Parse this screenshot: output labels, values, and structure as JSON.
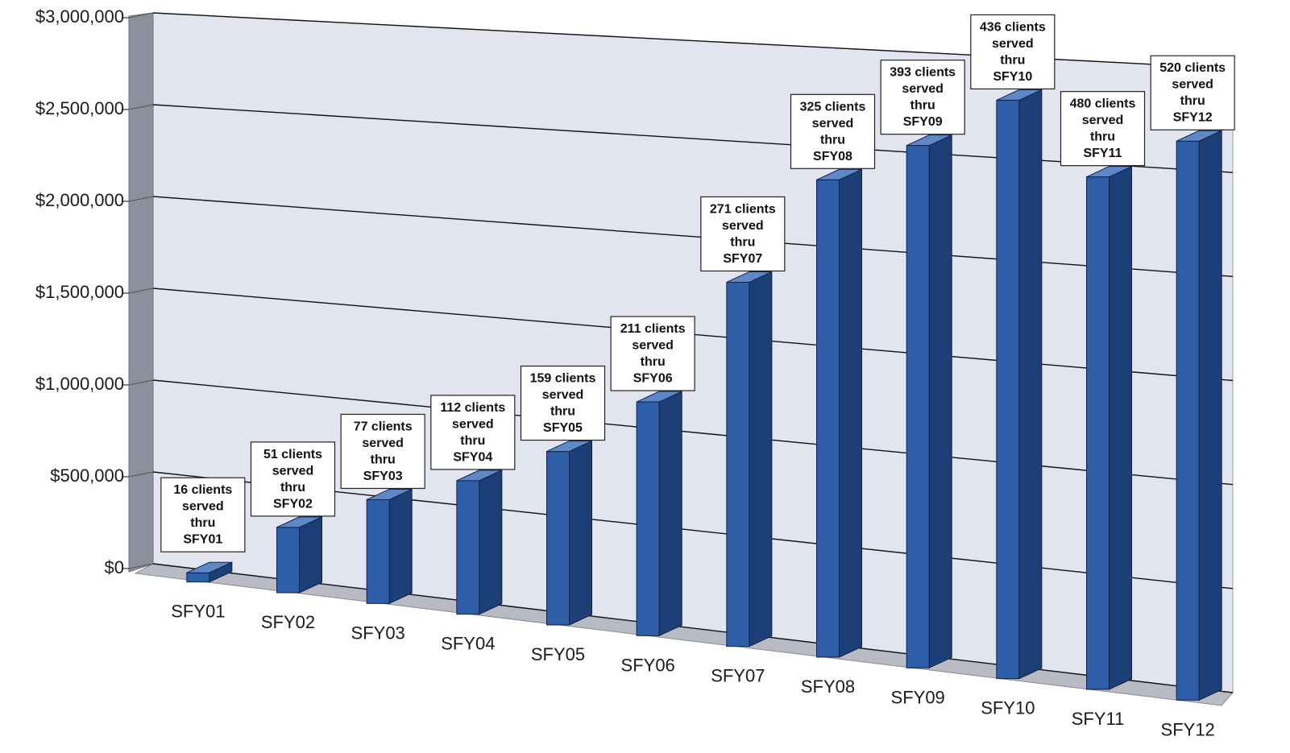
{
  "chart_data": {
    "type": "bar",
    "title": "",
    "xlabel": "",
    "ylabel": "",
    "ylim": [
      0,
      3000000
    ],
    "yticks": [
      "$0",
      "$500,000",
      "$1,000,000",
      "$1,500,000",
      "$2,000,000",
      "$2,500,000",
      "$3,000,000"
    ],
    "categories": [
      "SFY01",
      "SFY02",
      "SFY03",
      "SFY04",
      "SFY05",
      "SFY06",
      "SFY07",
      "SFY08",
      "SFY09",
      "SFY10",
      "SFY11",
      "SFY12"
    ],
    "values": [
      50000,
      350000,
      550000,
      700000,
      900000,
      1200000,
      1850000,
      2400000,
      2600000,
      2850000,
      2500000,
      2700000
    ],
    "annotations": [
      [
        "16 clients",
        "served",
        "thru",
        "SFY01"
      ],
      [
        "51 clients",
        "served",
        "thru",
        "SFY02"
      ],
      [
        "77 clients",
        "served",
        "thru",
        "SFY03"
      ],
      [
        "112 clients",
        "served",
        "thru",
        "SFY04"
      ],
      [
        "159 clients",
        "served",
        "thru",
        "SFY05"
      ],
      [
        "211 clients",
        "served",
        "thru",
        "SFY06"
      ],
      [
        "271 clients",
        "served",
        "thru",
        "SFY07"
      ],
      [
        "325 clients",
        "served",
        "thru",
        "SFY08"
      ],
      [
        "393 clients",
        "served",
        "thru",
        "SFY09"
      ],
      [
        "436 clients",
        "served",
        "thru",
        "SFY10"
      ],
      [
        "480 clients",
        "served",
        "thru",
        "SFY11"
      ],
      [
        "520 clients",
        "served",
        "thru",
        "SFY12"
      ]
    ],
    "grid": true,
    "legend": "none",
    "colors": {
      "bar_front": "#2f5ea8",
      "bar_side": "#1d3f78",
      "bar_top": "#5f88c9",
      "wall": "#e2e4f0",
      "floor": "#b9bbc4",
      "side_wall": "#8c8f9c"
    }
  }
}
